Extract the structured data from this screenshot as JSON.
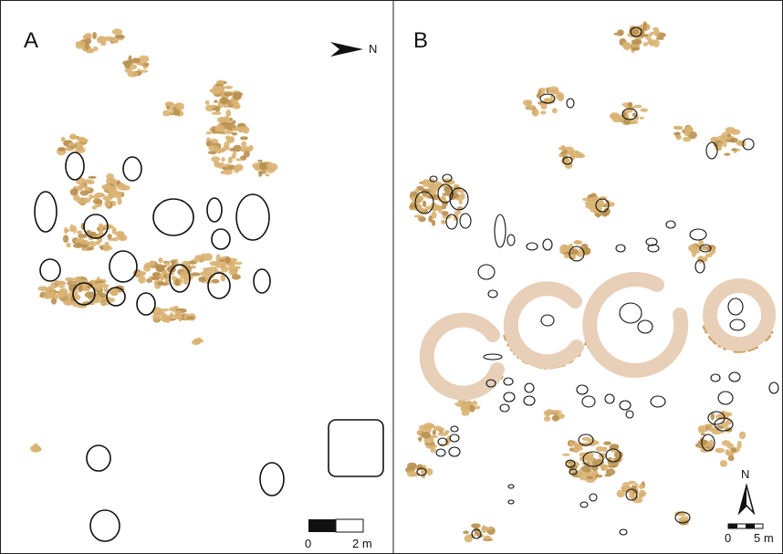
{
  "panels": [
    {
      "label": "A",
      "north": "N",
      "scale": {
        "start": "0",
        "end": "2 m"
      }
    },
    {
      "label": "B",
      "north": "N",
      "scale": {
        "start": "0",
        "end": "5 m"
      }
    }
  ]
}
